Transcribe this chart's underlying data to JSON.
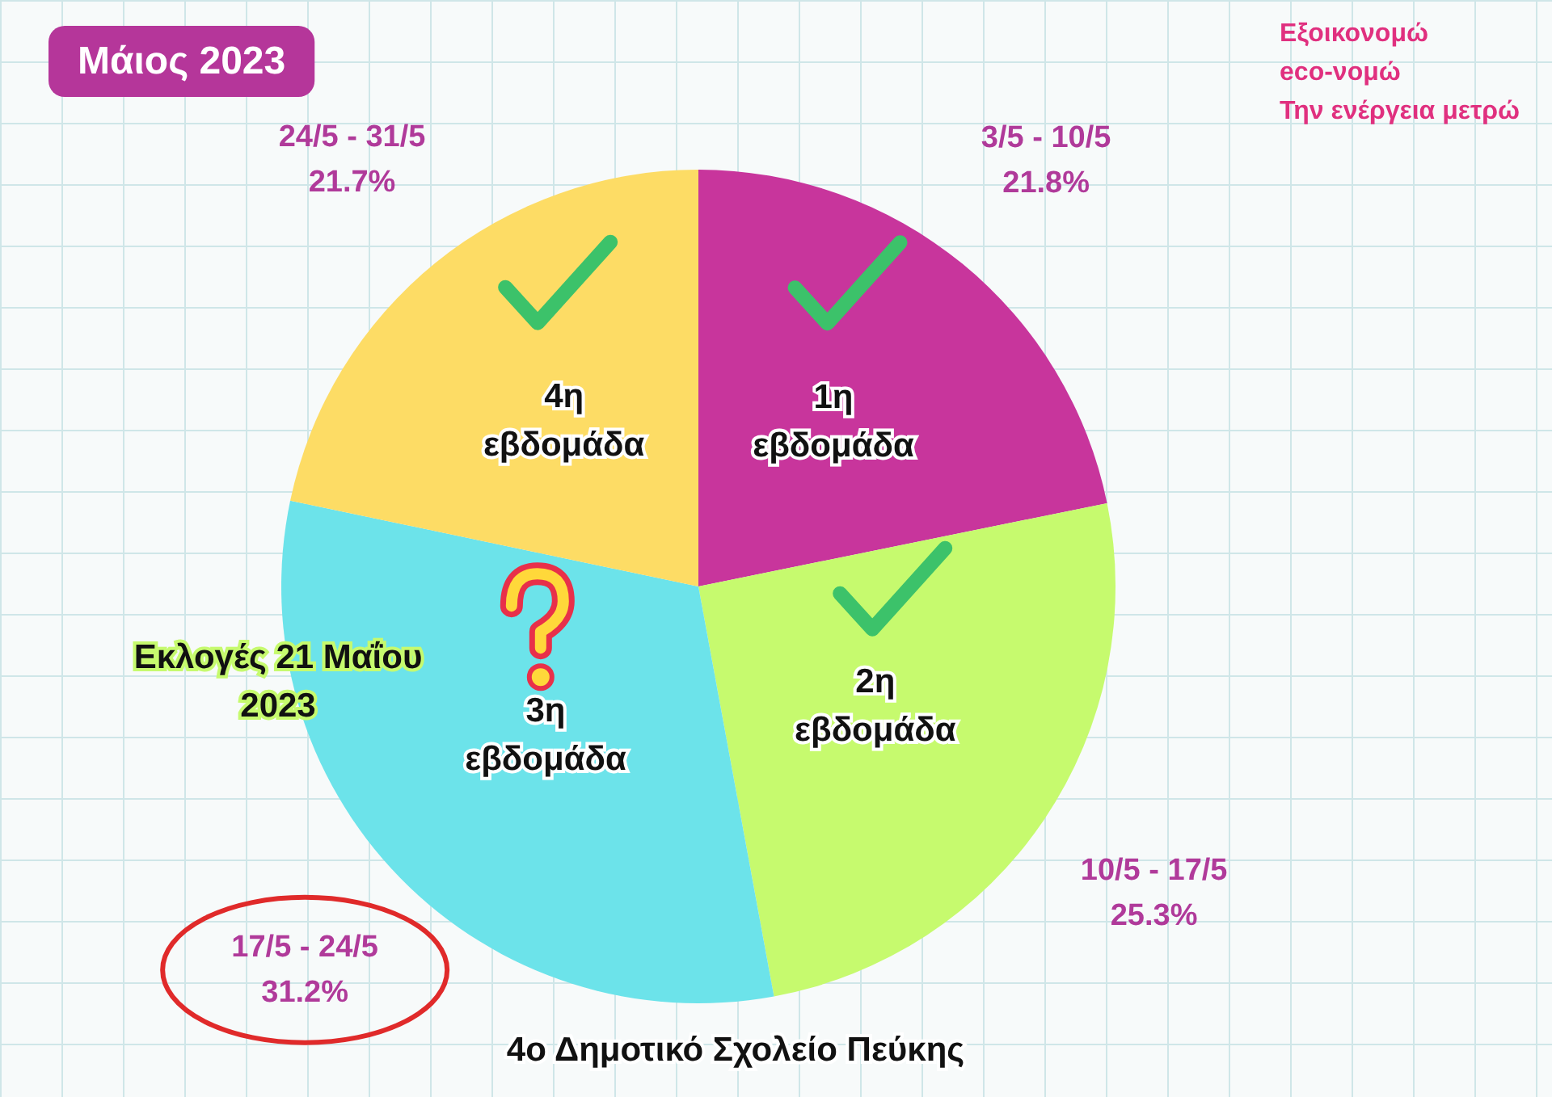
{
  "chart_data": {
    "type": "pie",
    "title": "Μάιος 2023",
    "subtitle": "Εξοικονομώ\neco-νομώ\nΤην ενέργεια μετρώ",
    "categories": [
      "1η εβδομάδα",
      "2η εβδομάδα",
      "3η εβδομάδα",
      "4η εβδομάδα"
    ],
    "values": [
      21.8,
      25.3,
      31.2,
      21.7
    ],
    "value_labels": [
      "21.8%",
      "25.3%",
      "31.2%",
      "21.7%"
    ],
    "colors": [
      "#c8359c",
      "#c6fa6e",
      "#6ce3ea",
      "#fddc65"
    ],
    "legend": false,
    "annotations": [
      {
        "text": "3/5 - 10/5",
        "x": "1η εβδομάδα"
      },
      {
        "text": "10/5 - 17/5",
        "x": "2η εβδομάδα"
      },
      {
        "text": "17/5 - 24/5",
        "x": "3η εβδομάδα"
      },
      {
        "text": "24/5 - 31/5",
        "x": "4η εβδομάδα"
      },
      "Εκλογές 21 Μαΐου\n2023",
      "4ο Δημοτικό Σχολείο Πεύκης"
    ]
  }
}
